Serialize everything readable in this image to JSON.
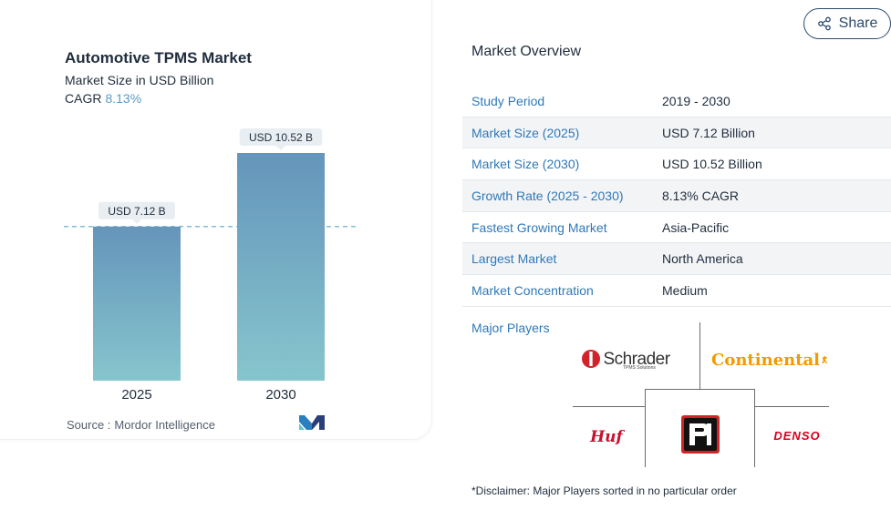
{
  "chart_data": {
    "type": "bar",
    "title": "Automotive TPMS Market",
    "subtitle": "Market Size in USD Billion",
    "cagr_label": "CAGR",
    "cagr_value": "8.13%",
    "categories": [
      "2025",
      "2030"
    ],
    "values": [
      7.12,
      10.52
    ],
    "data_labels": [
      "USD 7.12 B",
      "USD 10.52 B"
    ],
    "reference_line": 7.12,
    "grid": false,
    "colors": {
      "bar_top": "#6595bb",
      "bar_bottom": "#86c5cd",
      "label_bg": "#e8eef2",
      "reference_line": "#5ba8c9"
    }
  },
  "source": {
    "prefix": "Source :",
    "name": "Mordor Intelligence"
  },
  "share": {
    "label": "Share",
    "icon": "share-icon"
  },
  "overview": {
    "title": "Market Overview",
    "rows": [
      {
        "label": "Study Period",
        "value": "2019 - 2030"
      },
      {
        "label": "Market Size (2025)",
        "value": "USD 7.12 Billion"
      },
      {
        "label": "Market Size (2030)",
        "value": "USD 10.52 Billion"
      },
      {
        "label": "Growth Rate (2025 - 2030)",
        "value": "8.13% CAGR"
      },
      {
        "label": "Fastest Growing Market",
        "value": "Asia-Pacific"
      },
      {
        "label": "Largest Market",
        "value": "North America"
      },
      {
        "label": "Market Concentration",
        "value": "Medium"
      }
    ]
  },
  "players": {
    "label": "Major Players",
    "logos": {
      "schrader": "Schrader",
      "schrader_sub": "TPMS Solutions",
      "continental": "Continental",
      "huf": "Huf",
      "pi": "Pi",
      "denso": "DENSO"
    }
  },
  "disclaimer": "*Disclaimer: Major Players sorted in no particular order"
}
